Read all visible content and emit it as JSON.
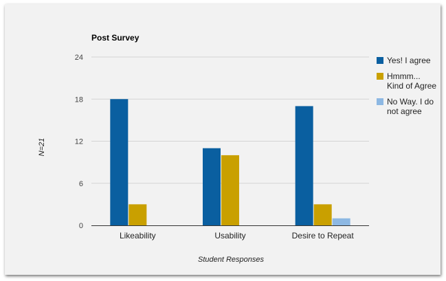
{
  "chart_data": {
    "type": "bar",
    "title": "Post Survey",
    "xlabel": "Student Responses",
    "ylabel": "N=21",
    "categories": [
      "Likeability",
      "Usability",
      "Desire to Repeat"
    ],
    "series": [
      {
        "name": "Yes! I agree",
        "color": "#0a5fa0",
        "values": [
          18,
          11,
          17
        ]
      },
      {
        "name": "Hmmm... Kind of Agree",
        "color": "#c9a000",
        "values": [
          3,
          10,
          3
        ]
      },
      {
        "name": "No Way. I do not agree",
        "color": "#8db8e3",
        "values": [
          0,
          0,
          1
        ]
      }
    ],
    "ylim": [
      0,
      24
    ],
    "yticks": [
      0,
      6,
      12,
      18,
      24
    ],
    "grid": true,
    "legend_position": "right"
  },
  "legend_lines": [
    [
      "Yes! I agree"
    ],
    [
      "Hmmm...",
      "Kind of Agree"
    ],
    [
      "No Way. I do",
      "not agree"
    ]
  ]
}
